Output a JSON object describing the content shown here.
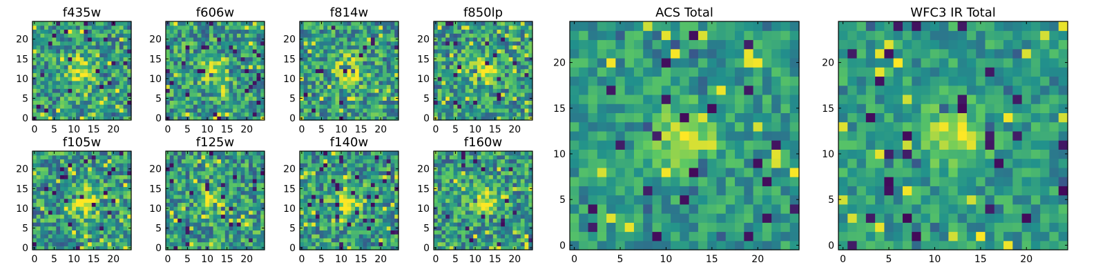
{
  "figure": {
    "colormap": {
      "name": "viridis",
      "stops": [
        "#440154",
        "#3b528b",
        "#21918c",
        "#5ec962",
        "#fde725"
      ]
    }
  },
  "chart_data": [
    {
      "type": "heatmap",
      "title": "f435w",
      "grid_size": [
        25,
        25
      ],
      "xlim": [
        0,
        24
      ],
      "ylim": [
        0,
        24
      ],
      "xticks": [
        0,
        5,
        10,
        15,
        20
      ],
      "yticks": [
        0,
        5,
        10,
        15,
        20
      ],
      "source_peak": [
        12,
        12
      ],
      "description_seed": 1
    },
    {
      "type": "heatmap",
      "title": "f606w",
      "grid_size": [
        25,
        25
      ],
      "xlim": [
        0,
        24
      ],
      "ylim": [
        0,
        24
      ],
      "xticks": [
        0,
        5,
        10,
        15,
        20
      ],
      "yticks": [
        0,
        5,
        10,
        15,
        20
      ],
      "source_peak": [
        12,
        12
      ],
      "description_seed": 2
    },
    {
      "type": "heatmap",
      "title": "f814w",
      "grid_size": [
        25,
        25
      ],
      "xlim": [
        0,
        24
      ],
      "ylim": [
        0,
        24
      ],
      "xticks": [
        0,
        5,
        10,
        15,
        20
      ],
      "yticks": [
        0,
        5,
        10,
        15,
        20
      ],
      "source_peak": [
        12,
        12
      ],
      "description_seed": 3
    },
    {
      "type": "heatmap",
      "title": "f850lp",
      "grid_size": [
        25,
        25
      ],
      "xlim": [
        0,
        24
      ],
      "ylim": [
        0,
        24
      ],
      "xticks": [
        0,
        5,
        10,
        15,
        20
      ],
      "yticks": [
        0,
        5,
        10,
        15,
        20
      ],
      "source_peak": [
        12,
        12
      ],
      "description_seed": 4
    },
    {
      "type": "heatmap",
      "title": "f105w",
      "grid_size": [
        25,
        25
      ],
      "xlim": [
        0,
        24
      ],
      "ylim": [
        0,
        24
      ],
      "xticks": [
        0,
        5,
        10,
        15,
        20
      ],
      "yticks": [
        0,
        5,
        10,
        15,
        20
      ],
      "source_peak": [
        12,
        12
      ],
      "description_seed": 5
    },
    {
      "type": "heatmap",
      "title": "f125w",
      "grid_size": [
        25,
        25
      ],
      "xlim": [
        0,
        24
      ],
      "ylim": [
        0,
        24
      ],
      "xticks": [
        0,
        5,
        10,
        15,
        20
      ],
      "yticks": [
        0,
        5,
        10,
        15,
        20
      ],
      "source_peak": [
        12,
        12
      ],
      "description_seed": 6
    },
    {
      "type": "heatmap",
      "title": "f140w",
      "grid_size": [
        25,
        25
      ],
      "xlim": [
        0,
        24
      ],
      "ylim": [
        0,
        24
      ],
      "xticks": [
        0,
        5,
        10,
        15,
        20
      ],
      "yticks": [
        0,
        5,
        10,
        15,
        20
      ],
      "source_peak": [
        12,
        12
      ],
      "description_seed": 7
    },
    {
      "type": "heatmap",
      "title": "f160w",
      "grid_size": [
        25,
        25
      ],
      "xlim": [
        0,
        24
      ],
      "ylim": [
        0,
        24
      ],
      "xticks": [
        0,
        5,
        10,
        15,
        20
      ],
      "yticks": [
        0,
        5,
        10,
        15,
        20
      ],
      "source_peak": [
        12,
        12
      ],
      "description_seed": 8
    },
    {
      "type": "heatmap",
      "title": "ACS Total",
      "grid_size": [
        25,
        25
      ],
      "xlim": [
        0,
        24
      ],
      "ylim": [
        0,
        24
      ],
      "xticks": [
        0,
        5,
        10,
        15,
        20
      ],
      "yticks": [
        0,
        5,
        10,
        15,
        20
      ],
      "source_peak": [
        12,
        12
      ],
      "description_seed": 9
    },
    {
      "type": "heatmap",
      "title": "WFC3 IR Total",
      "grid_size": [
        25,
        25
      ],
      "xlim": [
        0,
        24
      ],
      "ylim": [
        0,
        24
      ],
      "xticks": [
        0,
        5,
        10,
        15,
        20
      ],
      "yticks": [
        0,
        5,
        10,
        15,
        20
      ],
      "source_peak": [
        12,
        12
      ],
      "description_seed": 10
    }
  ]
}
